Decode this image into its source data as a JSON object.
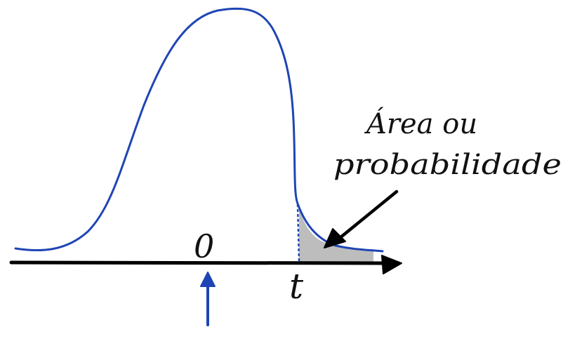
{
  "labels": {
    "zero": "0",
    "t": "t",
    "annotation_line1": "Área ou",
    "annotation_line2": "probabilidade"
  },
  "colors": {
    "curve": "#1f45b4",
    "axis": "#000000",
    "shaded_area": "#bdbdbd",
    "marker_arrow": "#1f45b4",
    "pointer_arrow": "#000000",
    "text": "#111111"
  }
}
